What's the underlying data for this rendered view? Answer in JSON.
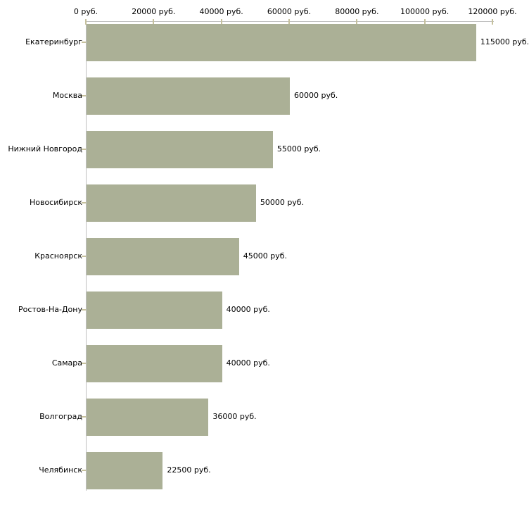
{
  "chart_data": {
    "type": "bar",
    "orientation": "horizontal",
    "title": "",
    "xlabel": "",
    "ylabel": "",
    "categories": [
      "Екатеринбург",
      "Москва",
      "Нижний Новгород",
      "Новосибирск",
      "Красноярск",
      "Ростов-На-Дону",
      "Самара",
      "Волгоград",
      "Челябинск"
    ],
    "values": [
      115000,
      60000,
      55000,
      50000,
      45000,
      40000,
      40000,
      36000,
      22500
    ],
    "value_labels": [
      "115000 руб.",
      "60000 руб.",
      "55000 руб.",
      "50000 руб.",
      "45000 руб.",
      "40000 руб.",
      "40000 руб.",
      "36000 руб.",
      "22500 руб."
    ],
    "x_ticks": [
      0,
      20000,
      40000,
      60000,
      80000,
      100000,
      120000
    ],
    "x_tick_labels": [
      "0 руб.",
      "20000 руб.",
      "40000 руб.",
      "60000 руб.",
      "80000 руб.",
      "100000 руб.",
      "120000 руб."
    ],
    "xlim": [
      0,
      120000
    ],
    "unit": "руб.",
    "grid": false,
    "legend": false,
    "colors": {
      "bar": "#abb096",
      "axis": "#c0c0c0",
      "tick": "#c6c19d",
      "text": "#000000",
      "background": "#ffffff"
    }
  }
}
